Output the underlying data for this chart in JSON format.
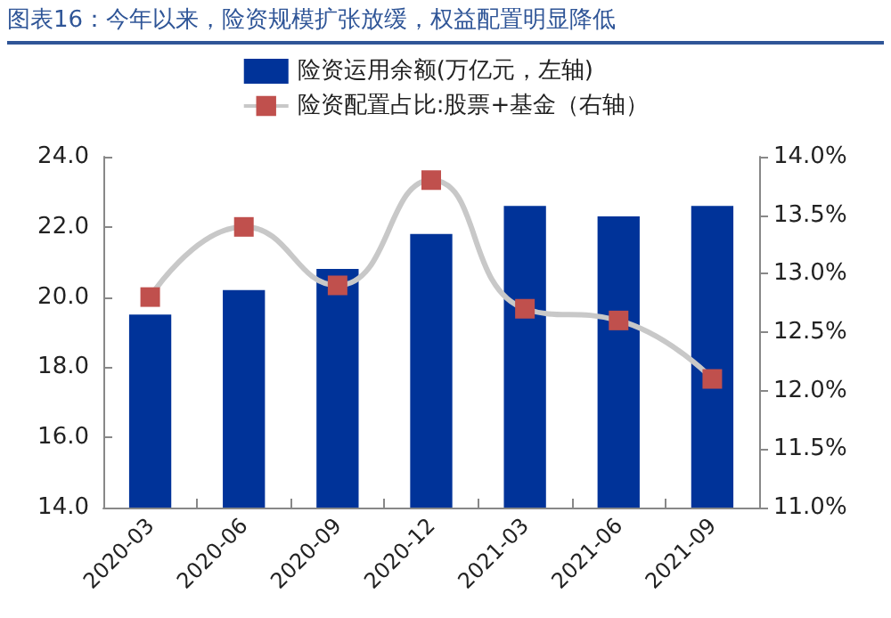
{
  "chart_data": {
    "type": "bar",
    "title": "图表16：今年以来，险资规模扩张放缓，权益配置明显降低",
    "categories": [
      "2020-03",
      "2020-06",
      "2020-09",
      "2020-12",
      "2021-03",
      "2021-06",
      "2021-09"
    ],
    "series": [
      {
        "name": "险资运用余额(万亿元，左轴)",
        "color": "#003399",
        "values": [
          19.5,
          20.2,
          20.8,
          21.8,
          22.6,
          22.3,
          22.6
        ]
      },
      {
        "name": "险资配置占比:股票+基金（右轴）",
        "type": "line",
        "axis": "y2",
        "color": "#c0504d",
        "marker": "square",
        "values": [
          12.8,
          13.4,
          12.9,
          13.8,
          12.7,
          12.6,
          12.1
        ]
      }
    ],
    "ylim": [
      14,
      24
    ],
    "yticks": [
      {
        "value": 14,
        "label": "14.0"
      },
      {
        "value": 16,
        "label": "16.0"
      },
      {
        "value": 18,
        "label": "18.0"
      },
      {
        "value": 20,
        "label": "20.0"
      },
      {
        "value": 22,
        "label": "22.0"
      },
      {
        "value": 24,
        "label": "24.0"
      }
    ],
    "y2lim": [
      11,
      14
    ],
    "y2ticks": [
      {
        "value": 11,
        "label": "11.0%"
      },
      {
        "value": 11.5,
        "label": "11.5%"
      },
      {
        "value": 12,
        "label": "12.0%"
      },
      {
        "value": 12.5,
        "label": "12.5%"
      },
      {
        "value": 13,
        "label": "13.0%"
      },
      {
        "value": 13.5,
        "label": "13.5%"
      },
      {
        "value": 14,
        "label": "14.0%"
      }
    ],
    "legend": "top",
    "grid": false
  }
}
